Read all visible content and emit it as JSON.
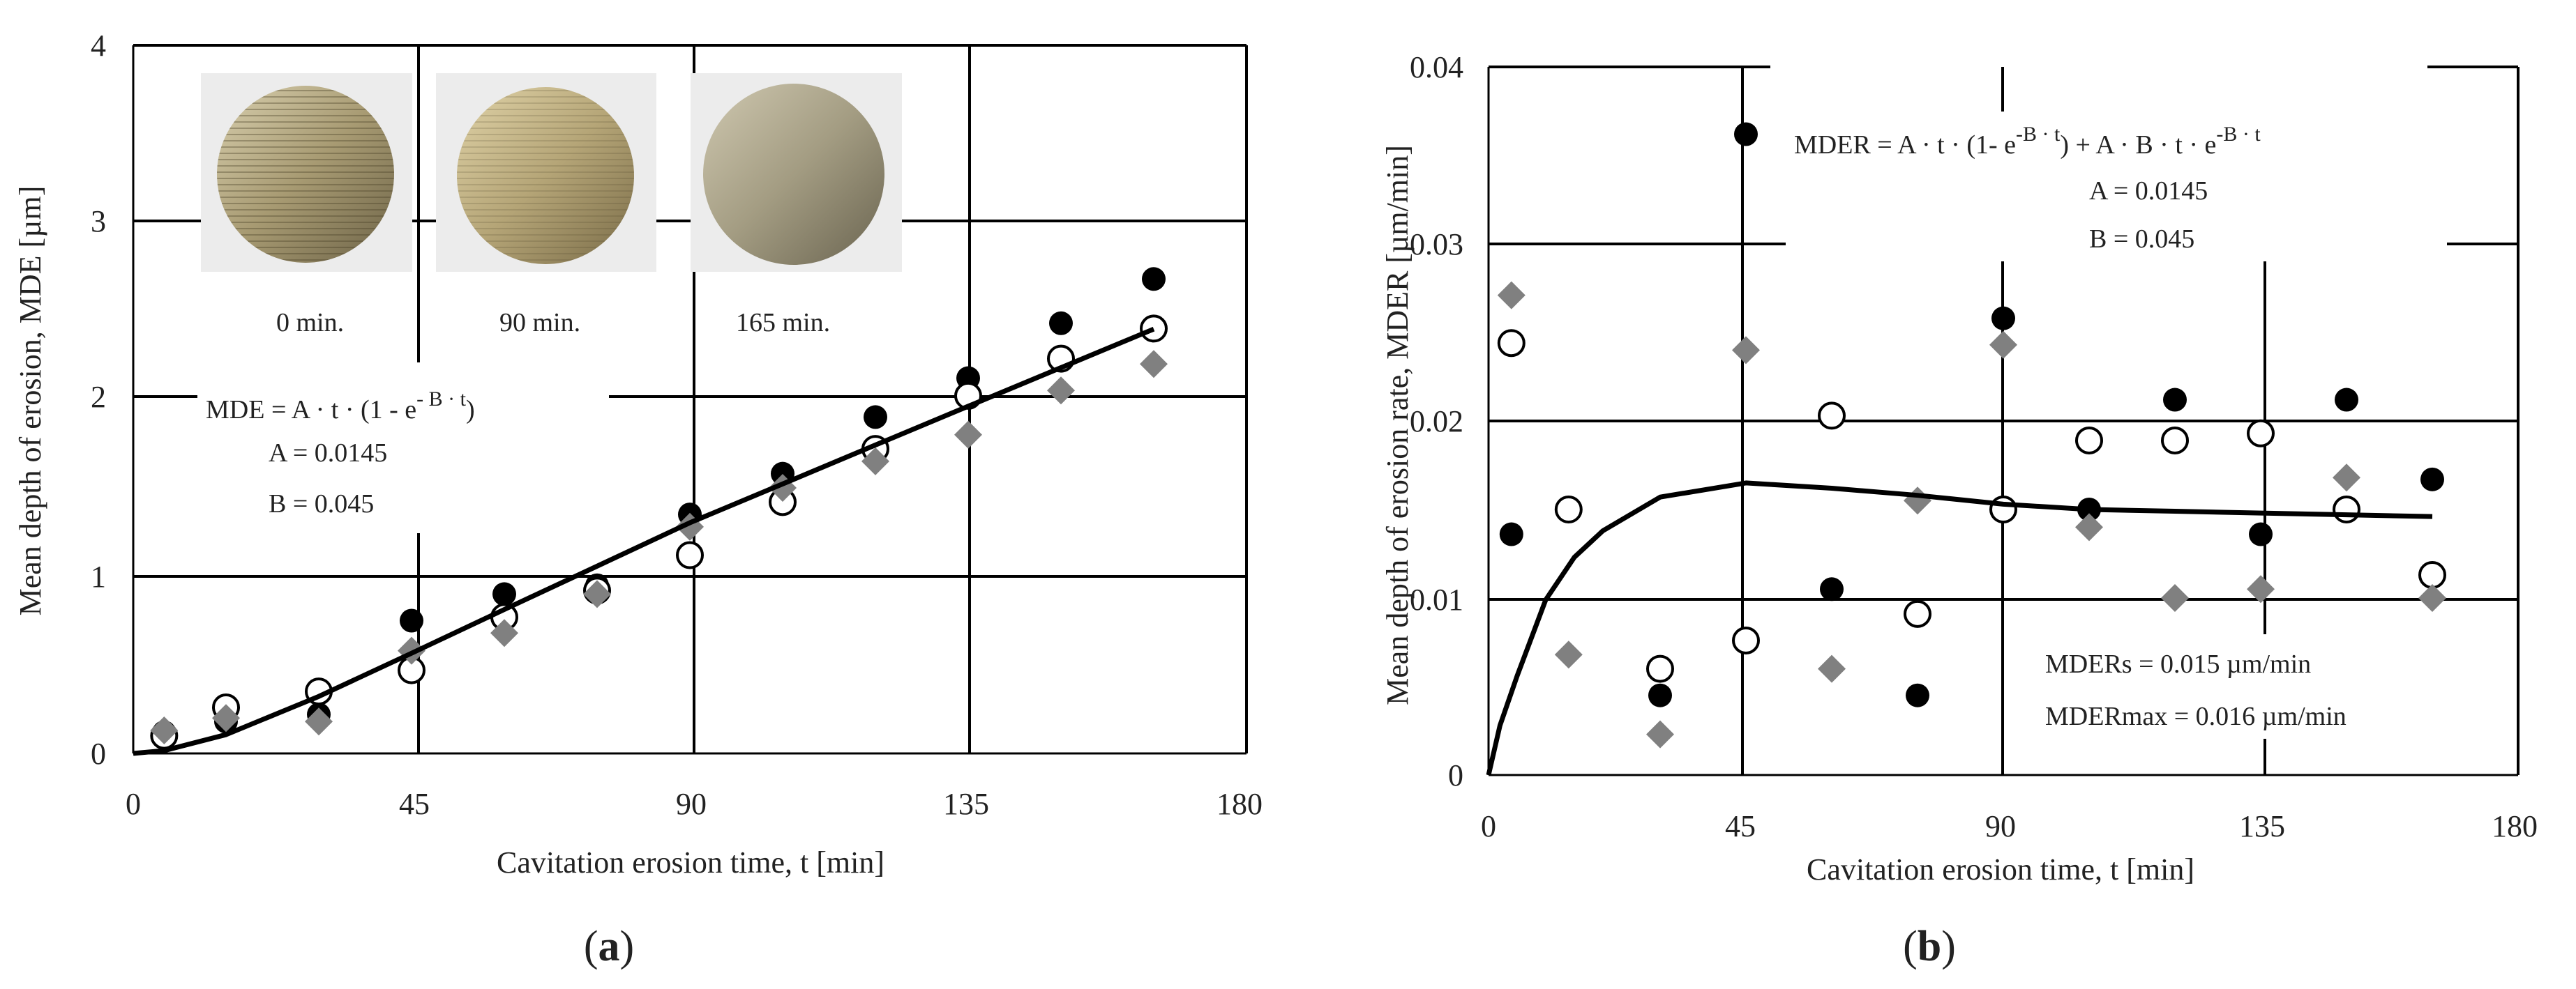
{
  "chart_data": [
    {
      "type": "scatter",
      "panel_label": "a",
      "xlabel": "Cavitation erosion time, t [min]",
      "ylabel": "Mean depth of erosion, MDE [µm]",
      "xlim": [
        0,
        180
      ],
      "ylim": [
        0,
        4
      ],
      "xticks": [
        0,
        45,
        90,
        135,
        180
      ],
      "yticks": [
        0,
        1,
        2,
        3,
        4
      ],
      "grid": true,
      "photos": [
        "0 min.",
        "90 min.",
        "165 min."
      ],
      "annotations": [
        "MDE = A · t · (1 - e- B · t)",
        "A = 0.0145",
        "B = 0.045"
      ],
      "series": [
        {
          "marker": "filled-circle",
          "color": "#000000",
          "x": [
            5,
            15,
            30,
            45,
            60,
            75,
            90,
            105,
            120,
            135,
            150,
            165
          ],
          "y": [
            0.12,
            0.18,
            0.22,
            0.75,
            0.9,
            0.95,
            1.35,
            1.58,
            1.9,
            2.12,
            2.43,
            2.68
          ]
        },
        {
          "marker": "open-circle",
          "color": "#000000",
          "x": [
            5,
            15,
            30,
            45,
            60,
            75,
            90,
            105,
            120,
            135,
            150,
            165
          ],
          "y": [
            0.1,
            0.26,
            0.35,
            0.47,
            0.77,
            0.92,
            1.12,
            1.42,
            1.72,
            2.02,
            2.23,
            2.4
          ]
        },
        {
          "marker": "diamond",
          "color": "#808080",
          "x": [
            5,
            15,
            30,
            45,
            60,
            75,
            90,
            105,
            120,
            135,
            150,
            165
          ],
          "y": [
            0.13,
            0.2,
            0.18,
            0.58,
            0.68,
            0.9,
            1.28,
            1.5,
            1.65,
            1.8,
            2.05,
            2.2
          ]
        },
        {
          "marker": "line",
          "color": "#000000",
          "x": [
            0,
            5,
            15,
            30,
            45,
            60,
            75,
            90,
            105,
            120,
            135,
            150,
            165
          ],
          "y": [
            0,
            0.016,
            0.106,
            0.322,
            0.566,
            0.813,
            1.058,
            1.303,
            1.522,
            1.742,
            1.961,
            2.179,
            2.397
          ]
        }
      ]
    },
    {
      "type": "scatter",
      "panel_label": "b",
      "xlabel": "Cavitation erosion time, t [min]",
      "ylabel": "Mean depth of erosion rate, MDER [µm/min]",
      "xlim": [
        0,
        180
      ],
      "ylim": [
        0,
        0.04
      ],
      "xticks": [
        0,
        45,
        90,
        135,
        180
      ],
      "yticks": [
        "0",
        "0.01",
        "0.02",
        "0.03",
        "0.04"
      ],
      "grid": true,
      "annotations": [
        "MDER = A · t · (1- e-B · t) + A · B · t · e-B · t",
        "A = 0.0145",
        "B = 0.045",
        "MDERs = 0.015 µm/min",
        "MDERmax = 0.016 µm/min"
      ],
      "series": [
        {
          "marker": "filled-circle",
          "color": "#000000",
          "x": [
            4,
            30,
            45,
            60,
            75,
            90,
            105,
            120,
            135,
            150,
            165
          ],
          "y": [
            0.0136,
            0.0045,
            0.0362,
            0.0105,
            0.0045,
            0.0258,
            0.015,
            0.0212,
            0.0136,
            0.0212,
            0.0167
          ]
        },
        {
          "marker": "open-circle",
          "color": "#000000",
          "x": [
            4,
            14,
            30,
            45,
            60,
            75,
            90,
            105,
            120,
            135,
            150,
            165
          ],
          "y": [
            0.0244,
            0.015,
            0.006,
            0.0076,
            0.0203,
            0.0091,
            0.015,
            0.0189,
            0.0189,
            0.0193,
            0.015,
            0.0113
          ]
        },
        {
          "marker": "diamond",
          "color": "#808080",
          "x": [
            4,
            14,
            30,
            45,
            60,
            75,
            90,
            105,
            120,
            135,
            150,
            165
          ],
          "y": [
            0.0271,
            0.0068,
            0.0023,
            0.024,
            0.006,
            0.0155,
            0.0243,
            0.014,
            0.01,
            0.0105,
            0.0168,
            0.01
          ]
        },
        {
          "marker": "line",
          "color": "#000000",
          "x": [
            0,
            2,
            5,
            10,
            15,
            20,
            30,
            45,
            60,
            75,
            90,
            105,
            120,
            135,
            150,
            165
          ],
          "y": [
            0,
            0.0028,
            0.0056,
            0.0099,
            0.0123,
            0.0138,
            0.0157,
            0.0165,
            0.0162,
            0.0158,
            0.0153,
            0.015,
            0.0149,
            0.0148,
            0.0147,
            0.0146
          ]
        }
      ]
    }
  ]
}
